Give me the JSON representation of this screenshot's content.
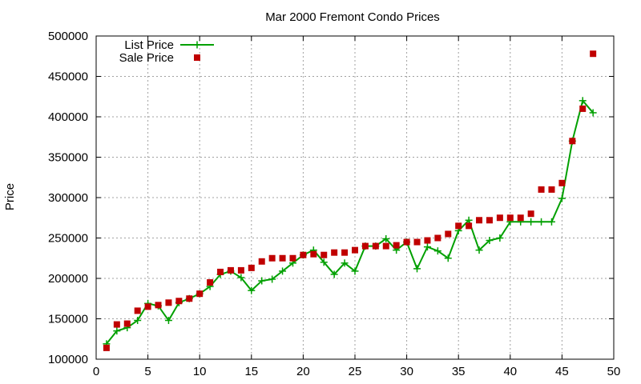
{
  "chart_data": {
    "type": "line",
    "title": "Mar 2000 Fremont Condo Prices",
    "xlabel": "",
    "ylabel": "Price",
    "xlim": [
      0,
      50
    ],
    "ylim": [
      100000,
      500000
    ],
    "x_ticks": [
      0,
      5,
      10,
      15,
      20,
      25,
      30,
      35,
      40,
      45,
      50
    ],
    "y_ticks": [
      100000,
      150000,
      200000,
      250000,
      300000,
      350000,
      400000,
      450000,
      500000
    ],
    "grid": true,
    "legend_position": "top-left",
    "series": [
      {
        "name": "List Price",
        "style": "line-with-plus-markers",
        "color": "#00a000",
        "points": [
          [
            1,
            119000
          ],
          [
            2,
            135000
          ],
          [
            3,
            139000
          ],
          [
            4,
            148000
          ],
          [
            5,
            169000
          ],
          [
            6,
            166000
          ],
          [
            7,
            148000
          ],
          [
            8,
            170000
          ],
          [
            9,
            175000
          ],
          [
            10,
            181000
          ],
          [
            11,
            190000
          ],
          [
            12,
            205000
          ],
          [
            13,
            209000
          ],
          [
            14,
            201000
          ],
          [
            15,
            185000
          ],
          [
            16,
            197000
          ],
          [
            17,
            199000
          ],
          [
            18,
            209000
          ],
          [
            19,
            219000
          ],
          [
            20,
            229000
          ],
          [
            21,
            235000
          ],
          [
            22,
            220000
          ],
          [
            23,
            205000
          ],
          [
            24,
            219000
          ],
          [
            25,
            209000
          ],
          [
            26,
            240000
          ],
          [
            27,
            240000
          ],
          [
            28,
            249000
          ],
          [
            29,
            235000
          ],
          [
            30,
            245000
          ],
          [
            31,
            212000
          ],
          [
            32,
            239000
          ],
          [
            33,
            234000
          ],
          [
            34,
            225000
          ],
          [
            35,
            259000
          ],
          [
            36,
            272000
          ],
          [
            37,
            235000
          ],
          [
            38,
            247000
          ],
          [
            39,
            250000
          ],
          [
            40,
            270000
          ],
          [
            41,
            270000
          ],
          [
            42,
            270000
          ],
          [
            43,
            270000
          ],
          [
            44,
            270000
          ],
          [
            45,
            299000
          ],
          [
            46,
            370000
          ],
          [
            47,
            420000
          ],
          [
            48,
            405000
          ]
        ]
      },
      {
        "name": "Sale Price",
        "style": "square-markers",
        "color": "#c00000",
        "points": [
          [
            1,
            114000
          ],
          [
            2,
            143000
          ],
          [
            3,
            144000
          ],
          [
            4,
            160000
          ],
          [
            5,
            165000
          ],
          [
            6,
            167000
          ],
          [
            7,
            170000
          ],
          [
            8,
            172000
          ],
          [
            9,
            175000
          ],
          [
            10,
            181000
          ],
          [
            11,
            195000
          ],
          [
            12,
            208000
          ],
          [
            13,
            210000
          ],
          [
            14,
            210000
          ],
          [
            15,
            213000
          ],
          [
            16,
            221000
          ],
          [
            17,
            225000
          ],
          [
            18,
            225000
          ],
          [
            19,
            225000
          ],
          [
            20,
            229000
          ],
          [
            21,
            230000
          ],
          [
            22,
            229000
          ],
          [
            23,
            232000
          ],
          [
            24,
            232000
          ],
          [
            25,
            235000
          ],
          [
            26,
            240000
          ],
          [
            27,
            240000
          ],
          [
            28,
            240000
          ],
          [
            29,
            241000
          ],
          [
            30,
            245000
          ],
          [
            31,
            245000
          ],
          [
            32,
            247000
          ],
          [
            33,
            250000
          ],
          [
            34,
            255000
          ],
          [
            35,
            265000
          ],
          [
            36,
            265000
          ],
          [
            37,
            272000
          ],
          [
            38,
            272000
          ],
          [
            39,
            275000
          ],
          [
            40,
            275000
          ],
          [
            41,
            275000
          ],
          [
            42,
            280000
          ],
          [
            43,
            310000
          ],
          [
            44,
            310000
          ],
          [
            45,
            318000
          ],
          [
            46,
            370000
          ],
          [
            47,
            410000
          ],
          [
            48,
            478000
          ]
        ]
      }
    ]
  }
}
